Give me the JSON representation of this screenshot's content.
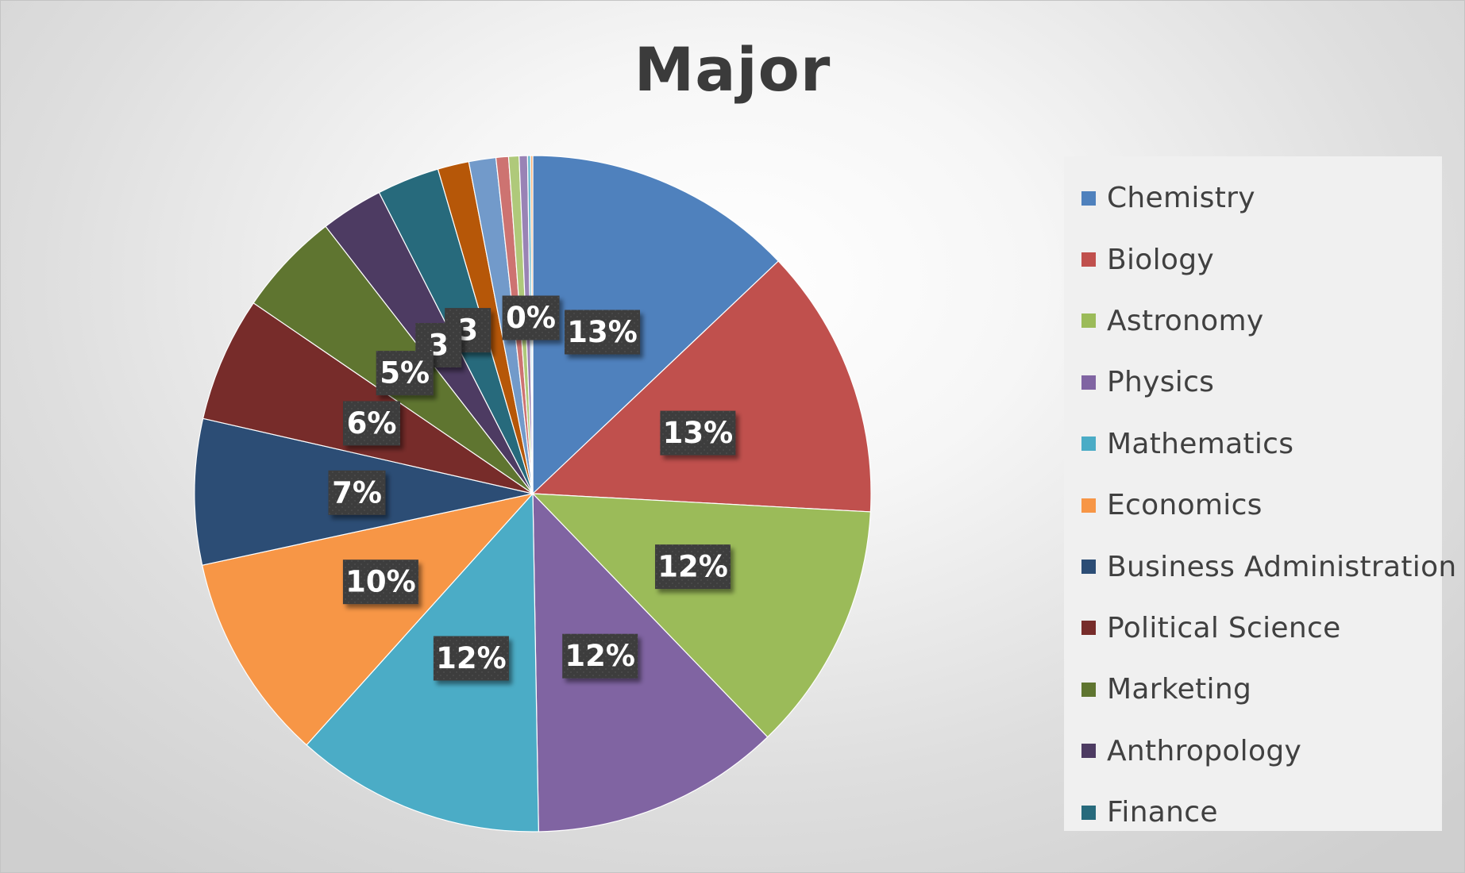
{
  "chart_data": {
    "type": "pie",
    "title": "Major",
    "legend_position": "right",
    "slices": [
      {
        "name": "Chemistry",
        "value": 13,
        "label": "13%",
        "color": "#4F81BD"
      },
      {
        "name": "Biology",
        "value": 13,
        "label": "13%",
        "color": "#C0504D"
      },
      {
        "name": "Astronomy",
        "value": 12,
        "label": "12%",
        "color": "#9BBB59"
      },
      {
        "name": "Physics",
        "value": 12,
        "label": "12%",
        "color": "#8064A2"
      },
      {
        "name": "Mathematics",
        "value": 12,
        "label": "12%",
        "color": "#4BACC6"
      },
      {
        "name": "Economics",
        "value": 10,
        "label": "10%",
        "color": "#F79646"
      },
      {
        "name": "Business Administration",
        "value": 7,
        "label": "7%",
        "color": "#2C4D75"
      },
      {
        "name": "Political Science",
        "value": 6,
        "label": "6%",
        "color": "#772C2A"
      },
      {
        "name": "Marketing",
        "value": 5,
        "label": "5%",
        "color": "#5F7530"
      },
      {
        "name": "Anthropology",
        "value": 3,
        "label": "3",
        "color": "#4D3B62"
      },
      {
        "name": "Finance",
        "value": 3,
        "label": "3",
        "color": "#276A7C"
      },
      {
        "name": "",
        "value": 1.5,
        "label": "",
        "color": "#B65708"
      },
      {
        "name": "",
        "value": 1.3,
        "label": "",
        "color": "#729ACA"
      },
      {
        "name": "",
        "value": 0.6,
        "label": "",
        "color": "#CD7371"
      },
      {
        "name": "",
        "value": 0.5,
        "label": "",
        "color": "#AFC97A"
      },
      {
        "name": "",
        "value": 0.4,
        "label": "",
        "color": "#9983B5"
      },
      {
        "name": "",
        "value": 0.15,
        "label": "0%",
        "color": "#6FBDD1"
      },
      {
        "name": "",
        "value": 0.1,
        "label": "",
        "color": "#F9AB6B"
      }
    ]
  }
}
